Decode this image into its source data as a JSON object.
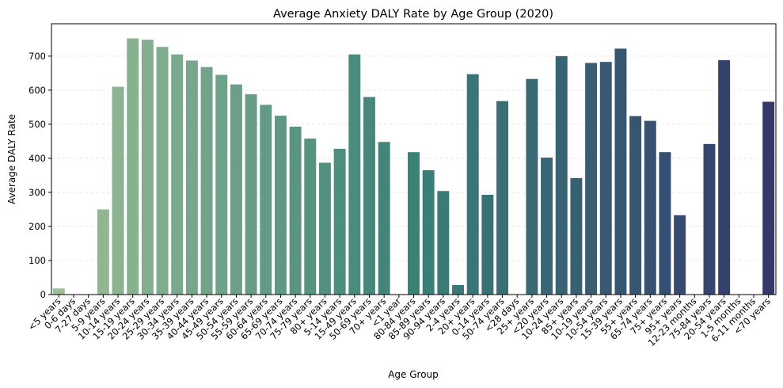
{
  "chart_data": {
    "type": "bar",
    "title": "Average Anxiety DALY Rate by Age Group (2020)",
    "xlabel": "Age Group",
    "ylabel": "Average DALY Rate",
    "ylim": [
      0,
      795
    ],
    "yticks": [
      0,
      100,
      200,
      300,
      400,
      500,
      600,
      700
    ],
    "grid": "y-dashed",
    "legend": "none",
    "categories": [
      "<5 years",
      "0-6 days",
      "7-27 days",
      "5-9 years",
      "10-14 years",
      "15-19 years",
      "20-24 years",
      "25-29 years",
      "30-34 years",
      "35-39 years",
      "40-44 years",
      "45-49 years",
      "50-54 years",
      "55-59 years",
      "60-64 years",
      "65-69 years",
      "70-74 years",
      "75-79 years",
      "80+ years",
      "5-14 years",
      "15-49 years",
      "50-69 years",
      "70+ years",
      "<1 year",
      "80-84 years",
      "85-89 years",
      "90-94 years",
      "2-4 years",
      "20+ years",
      "0-14 years",
      "50-74 years",
      "<28 days",
      "25+ years",
      "<20 years",
      "10-24 years",
      "85+ years",
      "10-19 years",
      "10-54 years",
      "15-39 years",
      "55+ years",
      "65-74 years",
      "75+ years",
      "95+ years",
      "12-23 months",
      "75-84 years",
      "20-54 years",
      "1-5 months",
      "6-11 months",
      "<70 years"
    ],
    "values": [
      18,
      0,
      0,
      250,
      610,
      752,
      748,
      727,
      705,
      687,
      668,
      645,
      617,
      588,
      557,
      525,
      493,
      458,
      387,
      428,
      705,
      580,
      448,
      0,
      418,
      365,
      304,
      28,
      647,
      293,
      568,
      0,
      633,
      402,
      700,
      342,
      680,
      683,
      722,
      524,
      510,
      418,
      233,
      0,
      442,
      688,
      0,
      0,
      566
    ],
    "palette": {
      "start": "#9cbd96",
      "mid": "#3a8178",
      "end": "#35396c"
    }
  }
}
